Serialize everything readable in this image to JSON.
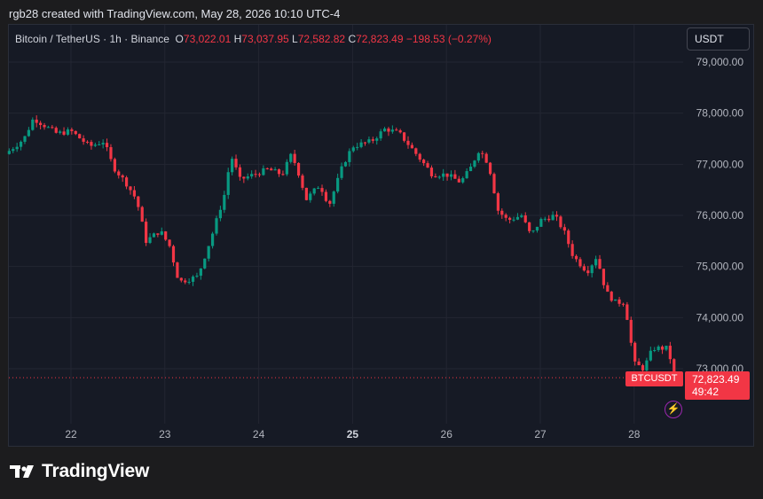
{
  "header": {
    "credit": "rgb28 created with TradingView.com, May 28, 2026 10:10 UTC-4"
  },
  "legend": {
    "symbol": "Bitcoin / TetherUS · 1h · Binance",
    "o_label": "O",
    "o": "73,022.01",
    "h_label": "H",
    "h": "73,037.95",
    "l_label": "L",
    "l": "72,582.82",
    "c_label": "C",
    "c": "72,823.49",
    "change": "−198.53 (−0.27%)"
  },
  "currency_button": "USDT",
  "price_label": {
    "symbol": "BTCUSDT",
    "price": "72,823.49",
    "countdown": "49:42"
  },
  "brand": "TradingView",
  "colors": {
    "up": "#089981",
    "down": "#f23645",
    "background": "#161a25",
    "grid": "#232632",
    "axis_text": "#b2b5be"
  },
  "chart_data": {
    "type": "candlestick",
    "title": "Bitcoin / TetherUS · 1h · Binance",
    "ylim": [
      72200,
      79300
    ],
    "y_ticks": [
      "79,000.00",
      "78,000.00",
      "77,000.00",
      "76,000.00",
      "75,000.00",
      "74,000.00",
      "73,000.00"
    ],
    "y_tick_values": [
      79000,
      78000,
      77000,
      76000,
      75000,
      74000,
      73000
    ],
    "x_ticks": [
      "22",
      "23",
      "24",
      "25",
      "26",
      "27",
      "28"
    ],
    "x_tick_bold": "25",
    "last_price": 72823.49,
    "close_path": [
      [
        21.3,
        77200
      ],
      [
        21.5,
        77500
      ],
      [
        21.6,
        77900
      ],
      [
        21.85,
        77600
      ],
      [
        22.0,
        77650
      ],
      [
        22.2,
        77350
      ],
      [
        22.35,
        77450
      ],
      [
        22.45,
        76950
      ],
      [
        22.6,
        76600
      ],
      [
        22.7,
        76300
      ],
      [
        22.8,
        75500
      ],
      [
        22.95,
        75700
      ],
      [
        23.05,
        75400
      ],
      [
        23.15,
        74700
      ],
      [
        23.35,
        74800
      ],
      [
        23.5,
        75600
      ],
      [
        23.65,
        76500
      ],
      [
        23.7,
        77200
      ],
      [
        23.8,
        76700
      ],
      [
        23.95,
        76800
      ],
      [
        24.1,
        76900
      ],
      [
        24.25,
        76800
      ],
      [
        24.35,
        77200
      ],
      [
        24.45,
        76700
      ],
      [
        24.5,
        76300
      ],
      [
        24.65,
        76600
      ],
      [
        24.75,
        76200
      ],
      [
        24.9,
        77000
      ],
      [
        25.0,
        77350
      ],
      [
        25.2,
        77450
      ],
      [
        25.35,
        77700
      ],
      [
        25.5,
        77600
      ],
      [
        25.7,
        77150
      ],
      [
        25.85,
        76800
      ],
      [
        26.0,
        76800
      ],
      [
        26.15,
        76650
      ],
      [
        26.25,
        76900
      ],
      [
        26.35,
        77300
      ],
      [
        26.45,
        77000
      ],
      [
        26.55,
        76100
      ],
      [
        26.65,
        75900
      ],
      [
        26.8,
        76000
      ],
      [
        26.9,
        75600
      ],
      [
        27.0,
        75900
      ],
      [
        27.15,
        76000
      ],
      [
        27.25,
        75700
      ],
      [
        27.35,
        75200
      ],
      [
        27.5,
        74900
      ],
      [
        27.6,
        75200
      ],
      [
        27.7,
        74500
      ],
      [
        27.8,
        74300
      ],
      [
        27.9,
        74300
      ],
      [
        28.0,
        73100
      ],
      [
        28.1,
        73000
      ],
      [
        28.2,
        73400
      ],
      [
        28.35,
        73400
      ],
      [
        28.45,
        72823
      ]
    ]
  }
}
